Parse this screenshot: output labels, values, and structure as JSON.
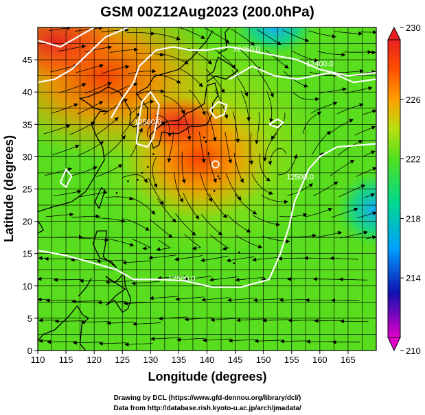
{
  "title": "GSM 00Z12Aug2023 (200.0hPa)",
  "x_axis": {
    "label": "Longitude (degrees)",
    "min": 110,
    "max": 170,
    "ticks": [
      "110",
      "115",
      "120",
      "125",
      "130",
      "135",
      "140",
      "145",
      "150",
      "155",
      "160",
      "165"
    ]
  },
  "y_axis": {
    "label": "Latitude  (degrees)",
    "min": 0,
    "max": 50,
    "ticks": [
      "0",
      "5",
      "10",
      "15",
      "20",
      "25",
      "30",
      "35",
      "40",
      "45"
    ]
  },
  "colorbar": {
    "min": 210,
    "max": 230,
    "labels": [
      "210",
      "214",
      "218",
      "222",
      "226",
      "230"
    ],
    "stops": [
      {
        "value": 210,
        "color": "#e000c8"
      },
      {
        "value": 213,
        "color": "#1010b0"
      },
      {
        "value": 216,
        "color": "#00a0ff"
      },
      {
        "value": 219,
        "color": "#00d890"
      },
      {
        "value": 222,
        "color": "#50e020"
      },
      {
        "value": 224,
        "color": "#b8e010"
      },
      {
        "value": 226,
        "color": "#ffa000"
      },
      {
        "value": 228,
        "color": "#ff5000"
      },
      {
        "value": 230,
        "color": "#e82020"
      }
    ]
  },
  "contours": [
    {
      "label": "12500.0",
      "lon": 129.5,
      "lat": 35.0
    },
    {
      "label": "12500.0",
      "lon": 135.5,
      "lat": 10.8
    },
    {
      "label": "12500.0",
      "lon": 156.5,
      "lat": 26.5
    },
    {
      "label": "12450.0",
      "lon": 147.0,
      "lat": 46.3
    },
    {
      "label": "12400.0",
      "lon": 160.0,
      "lat": 44.0
    }
  ],
  "credits": {
    "line1": "Drawing by DCL (https://www.gfd-dennou.org/library/dcl/)",
    "line2": "Data from http://database.rish.kyoto-u.ac.jp/arch/jmadata/"
  }
}
